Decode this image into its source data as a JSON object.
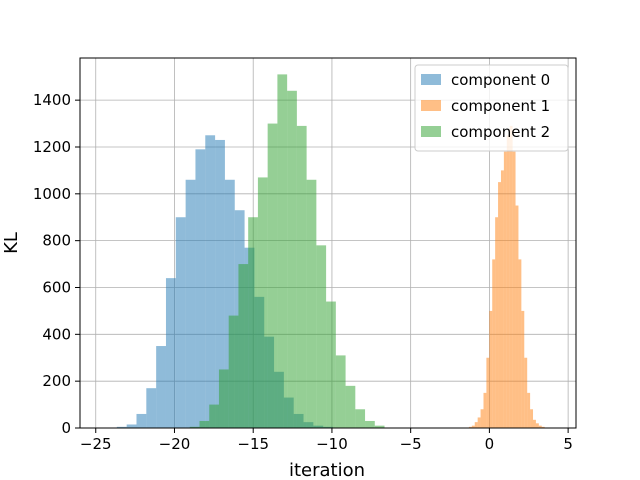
{
  "chart_data": {
    "type": "bar",
    "xlabel": "iteration",
    "ylabel": "KL",
    "xlim": [
      -26,
      5.5
    ],
    "ylim": [
      0,
      1580
    ],
    "xticks": [
      -25,
      -20,
      -15,
      -10,
      -5,
      0,
      5
    ],
    "yticks": [
      0,
      200,
      400,
      600,
      800,
      1000,
      1200,
      1400
    ],
    "grid": true,
    "legend": "top-right",
    "series": [
      {
        "name": "component 0",
        "color": "#1f77b4",
        "bin_width": 0.624,
        "bin_start": -23.66,
        "values": [
          5,
          15,
          60,
          170,
          350,
          640,
          900,
          1060,
          1190,
          1250,
          1230,
          1060,
          930,
          770,
          560,
          390,
          240,
          130,
          60,
          25,
          10,
          5,
          2,
          1
        ]
      },
      {
        "name": "component 1",
        "color": "#ff7f0e",
        "bin_width": 0.185,
        "bin_start": -1.3,
        "values": [
          5,
          10,
          25,
          45,
          80,
          150,
          300,
          500,
          720,
          900,
          1050,
          1100,
          1180,
          1250,
          1290,
          1180,
          950,
          720,
          500,
          300,
          150,
          80,
          35,
          20,
          10,
          5
        ]
      },
      {
        "name": "component 2",
        "color": "#2ca02c",
        "bin_width": 0.6185,
        "bin_start": -19.03,
        "values": [
          5,
          30,
          100,
          250,
          480,
          700,
          900,
          1070,
          1300,
          1510,
          1440,
          1290,
          1060,
          780,
          540,
          310,
          180,
          80,
          30,
          10
        ]
      }
    ]
  }
}
